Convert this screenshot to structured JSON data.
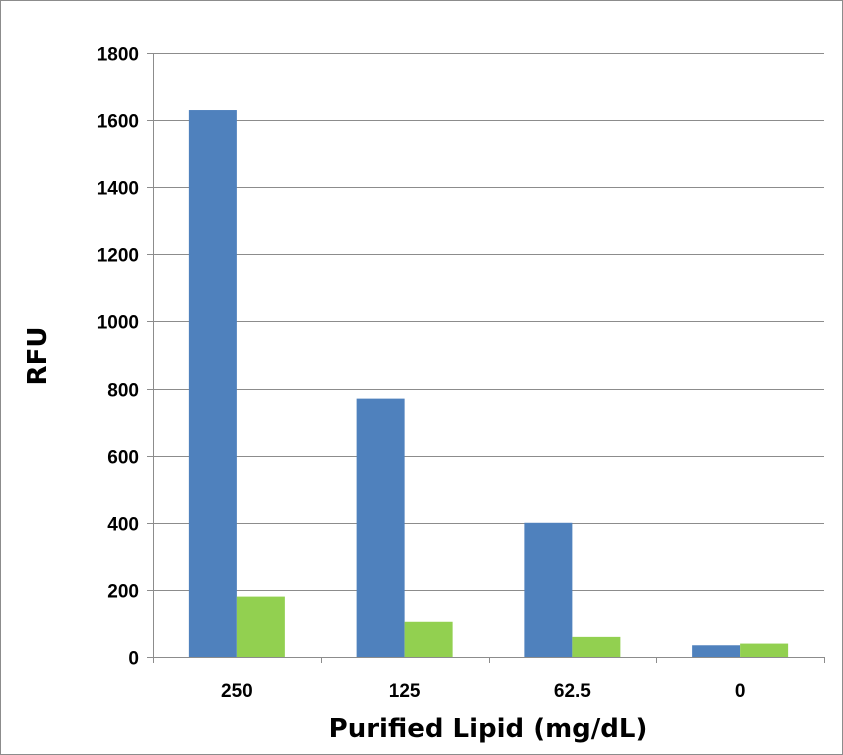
{
  "chart_data": {
    "type": "bar",
    "title": "",
    "xlabel": "Purified Lipid (mg/dL)",
    "ylabel": "RFU",
    "categories": [
      "250",
      "125",
      "62.5",
      "0"
    ],
    "series": [
      {
        "color": "#4f81bd",
        "values": [
          1630,
          770,
          400,
          35
        ]
      },
      {
        "color": "#92d050",
        "values": [
          180,
          105,
          60,
          40
        ]
      }
    ],
    "ylim": [
      0,
      1800
    ],
    "yticks": [
      0,
      200,
      400,
      600,
      800,
      1000,
      1200,
      1400,
      1600,
      1800
    ],
    "ytick_labels": [
      "0",
      "200",
      "400",
      "600",
      "800",
      "1000",
      "1200",
      "1400",
      "1600",
      "1800"
    ],
    "grid": true,
    "legend": "none"
  }
}
